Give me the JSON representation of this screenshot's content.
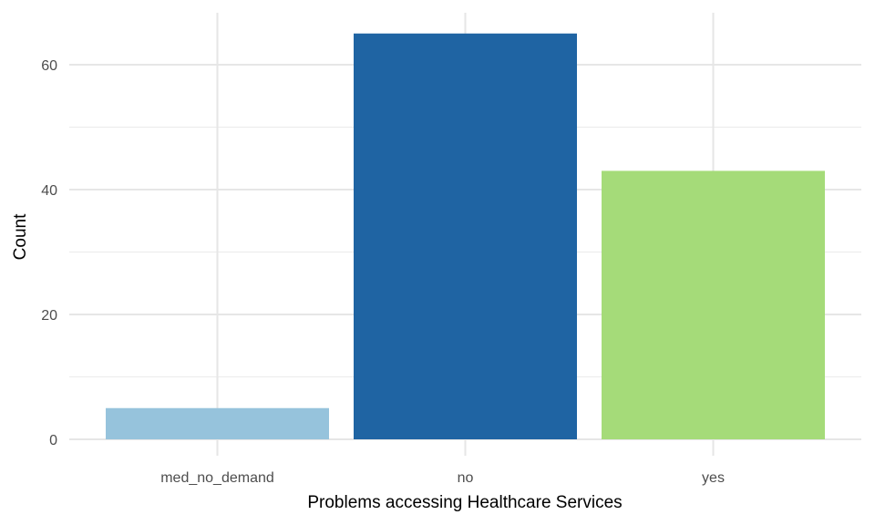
{
  "chart_data": {
    "type": "bar",
    "categories": [
      "med_no_demand",
      "no",
      "yes"
    ],
    "values": [
      5,
      65,
      43
    ],
    "colors": [
      "#96c3dc",
      "#1f64a3",
      "#a5db79"
    ],
    "xlabel": "Problems accessing Healthcare Services",
    "ylabel": "Count",
    "ylim": [
      0,
      68.4
    ],
    "yticks": [
      0,
      20,
      40,
      60
    ],
    "grid": true,
    "legend": "none"
  }
}
